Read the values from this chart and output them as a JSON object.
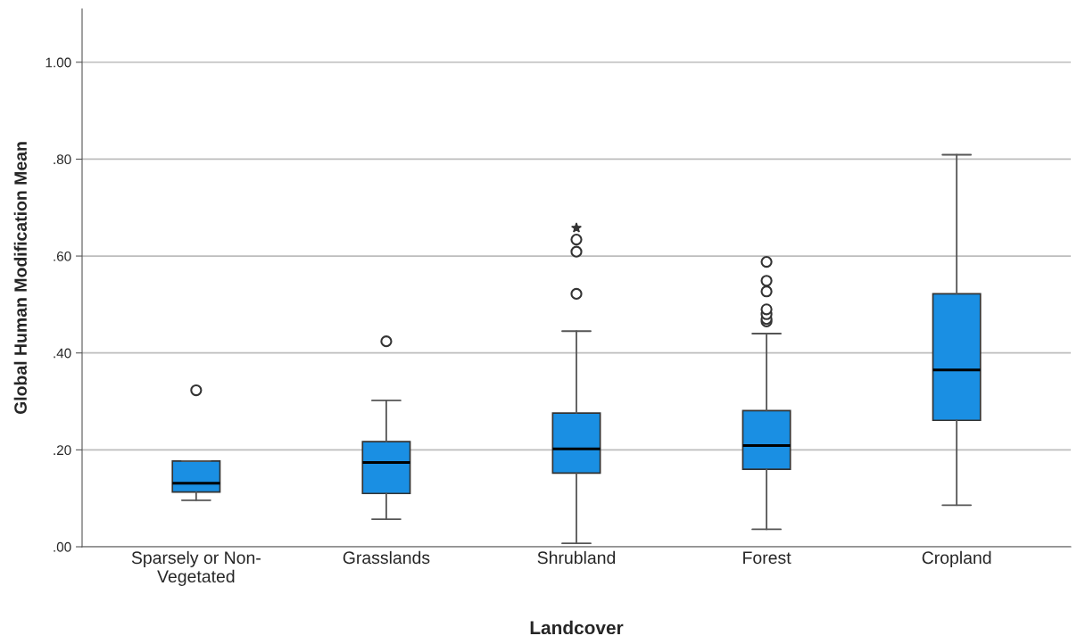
{
  "chart_data": {
    "type": "box",
    "xlabel": "Landcover",
    "ylabel": "Global Human Modification Mean",
    "categories": [
      "Sparsely or Non-\nVegetated",
      "Grasslands",
      "Shrubland",
      "Forest",
      "Cropland"
    ],
    "boxes": [
      {
        "low": 0.096,
        "q1": 0.113,
        "median": 0.131,
        "q3": 0.177,
        "high": 0.177,
        "outliers": [
          0.323
        ]
      },
      {
        "low": 0.057,
        "q1": 0.11,
        "median": 0.174,
        "q3": 0.217,
        "high": 0.302,
        "outliers": [
          0.424
        ]
      },
      {
        "low": 0.007,
        "q1": 0.152,
        "median": 0.202,
        "q3": 0.276,
        "high": 0.445,
        "outliers": [
          0.522,
          0.609,
          0.634,
          0.658
        ]
      },
      {
        "low": 0.036,
        "q1": 0.16,
        "median": 0.209,
        "q3": 0.281,
        "high": 0.44,
        "outliers": [
          0.465,
          0.47,
          0.48,
          0.49,
          0.527,
          0.549,
          0.588
        ]
      },
      {
        "low": 0.086,
        "q1": 0.261,
        "median": 0.365,
        "q3": 0.522,
        "high": 0.809
      }
    ],
    "color": "#1a8fe3",
    "ylim": [
      0,
      1.11
    ],
    "yticks": [
      {
        "value": 0,
        "label": ".00"
      },
      {
        "value": 0.2,
        "label": ".20"
      },
      {
        "value": 0.4,
        "label": ".40"
      },
      {
        "value": 0.6,
        "label": ".60"
      },
      {
        "value": 0.8,
        "label": ".80"
      },
      {
        "value": 1.0,
        "label": "1.00"
      }
    ],
    "grid": "y"
  }
}
